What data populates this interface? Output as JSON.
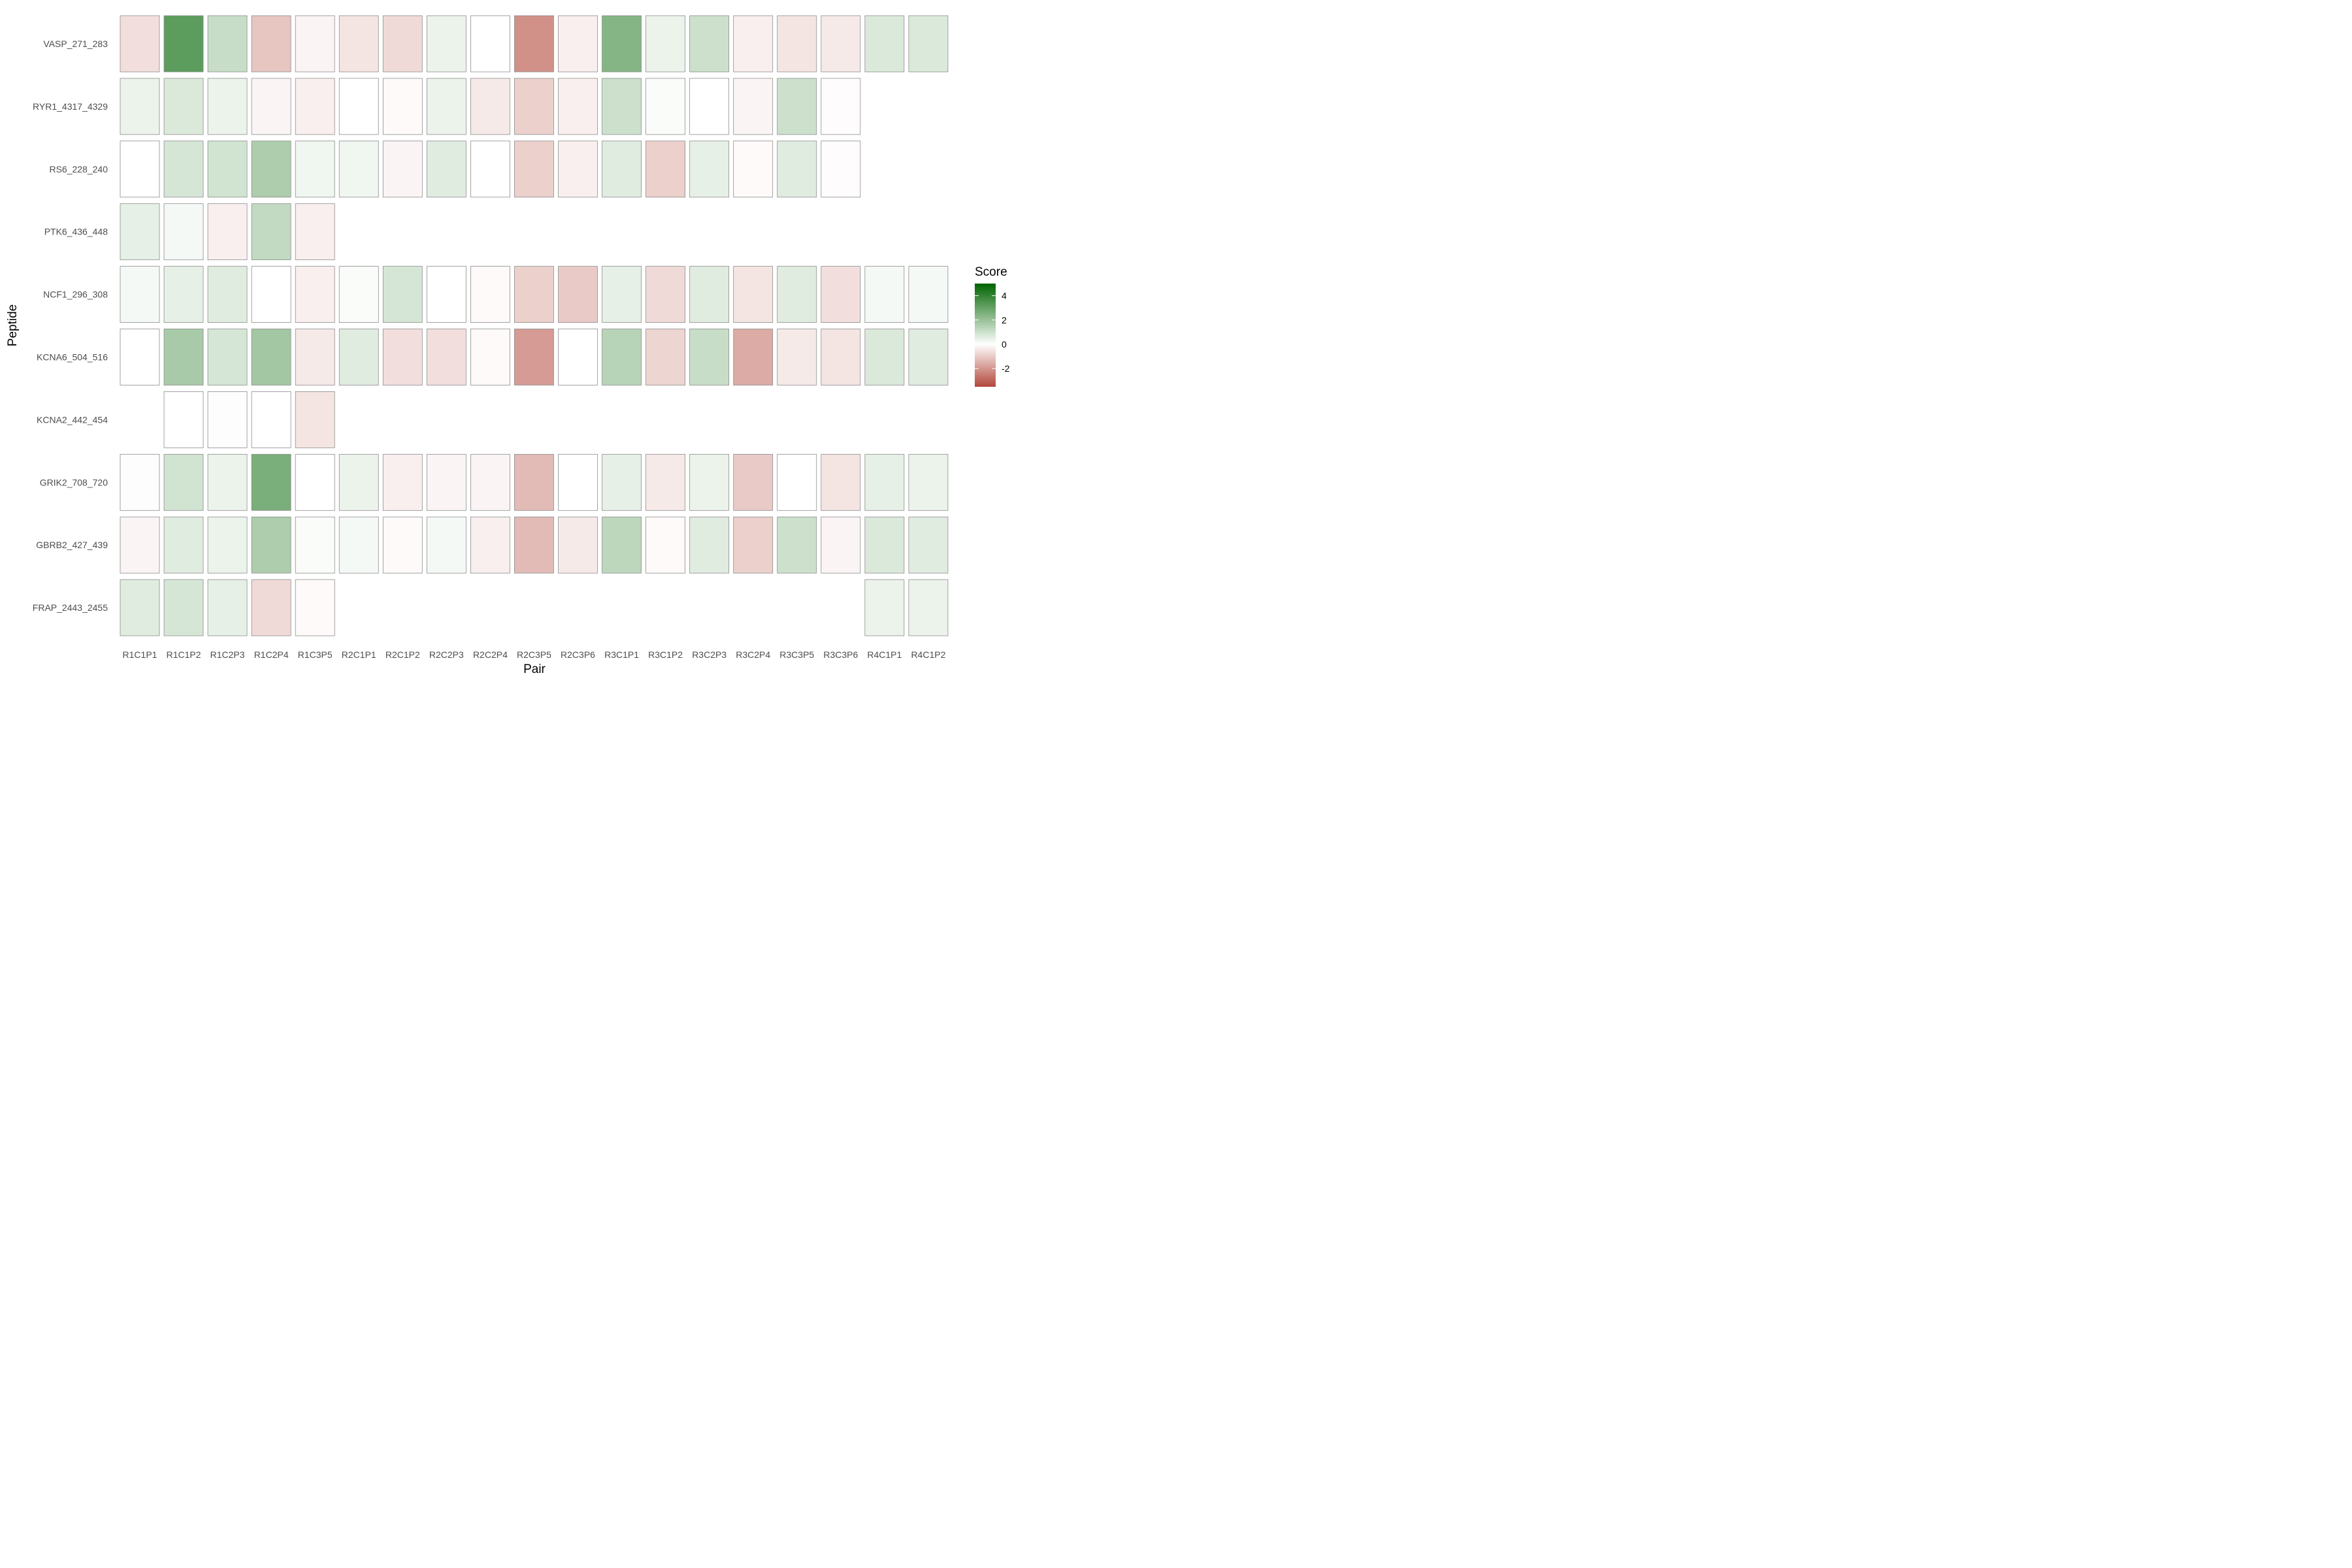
{
  "chart_data": {
    "type": "heatmap",
    "xlabel": "Pair",
    "ylabel": "Peptide",
    "legend": {
      "title": "Score",
      "position": "right",
      "ticks": [
        4,
        2,
        0,
        -2
      ],
      "range": [
        -3.5,
        5
      ]
    },
    "colors": {
      "low": "#b2473a",
      "mid": "#ffffff",
      "high": "#006400",
      "border": "#8c8c8c"
    },
    "x": [
      "R1C1P1",
      "R1C1P2",
      "R1C2P3",
      "R1C2P4",
      "R1C3P5",
      "R2C1P1",
      "R2C1P2",
      "R2C2P3",
      "R2C2P4",
      "R2C3P5",
      "R2C3P6",
      "R3C1P1",
      "R3C1P2",
      "R3C2P3",
      "R3C2P4",
      "R3C3P5",
      "R3C3P6",
      "R4C1P1",
      "R4C1P2"
    ],
    "y": [
      "VASP_271_283",
      "RYR1_4317_4329",
      "RS6_228_240",
      "PTK6_436_448",
      "NCF1_296_308",
      "KCNA6_504_516",
      "KCNA2_442_454",
      "GRIK2_708_720",
      "GBRB2_427_439",
      "FRAP_2443_2455"
    ],
    "values": [
      [
        -0.6,
        3.2,
        1.1,
        -1.1,
        -0.2,
        -0.5,
        -0.7,
        0.4,
        0.0,
        -2.1,
        -0.3,
        2.4,
        0.4,
        1.0,
        -0.3,
        -0.5,
        -0.4,
        0.7,
        0.7
      ],
      [
        0.4,
        0.7,
        0.4,
        -0.2,
        -0.3,
        0.0,
        -0.1,
        0.4,
        -0.4,
        -0.9,
        -0.3,
        1.0,
        0.1,
        0.0,
        -0.2,
        1.0,
        -0.05,
        null,
        null
      ],
      [
        0.0,
        0.8,
        0.9,
        1.6,
        0.3,
        0.3,
        -0.2,
        0.6,
        0.0,
        -0.9,
        -0.3,
        0.6,
        -0.9,
        0.5,
        -0.1,
        0.6,
        -0.05,
        null,
        null
      ],
      [
        0.5,
        0.2,
        -0.3,
        1.2,
        -0.3,
        null,
        null,
        null,
        null,
        null,
        null,
        null,
        null,
        null,
        null,
        null,
        null,
        null,
        null
      ],
      [
        0.2,
        0.5,
        0.6,
        0.0,
        -0.3,
        0.1,
        0.8,
        0.0,
        -0.1,
        -0.9,
        -1.0,
        0.5,
        -0.7,
        0.6,
        -0.5,
        0.6,
        -0.6,
        0.2,
        0.2
      ],
      [
        0.0,
        1.7,
        0.8,
        1.8,
        -0.4,
        0.6,
        -0.6,
        -0.6,
        -0.1,
        -1.9,
        0.0,
        1.4,
        -0.8,
        1.1,
        -1.6,
        -0.4,
        -0.5,
        0.7,
        0.6
      ],
      [
        null,
        0.0,
        0.05,
        0.0,
        -0.5,
        null,
        null,
        null,
        null,
        null,
        null,
        null,
        null,
        null,
        null,
        null,
        null,
        null,
        null
      ],
      [
        0.05,
        0.9,
        0.4,
        2.6,
        0.0,
        0.4,
        -0.3,
        -0.2,
        -0.2,
        -1.3,
        0.0,
        0.5,
        -0.4,
        0.4,
        -1.0,
        0.0,
        -0.5,
        0.5,
        0.4
      ],
      [
        -0.2,
        0.6,
        0.4,
        1.6,
        0.1,
        0.2,
        -0.1,
        0.2,
        -0.3,
        -1.3,
        -0.4,
        1.3,
        -0.1,
        0.6,
        -0.9,
        1.0,
        -0.2,
        0.7,
        0.6
      ],
      [
        0.6,
        0.8,
        0.5,
        -0.7,
        -0.1,
        null,
        null,
        null,
        null,
        null,
        null,
        null,
        null,
        null,
        null,
        null,
        null,
        0.4,
        0.4
      ]
    ]
  }
}
